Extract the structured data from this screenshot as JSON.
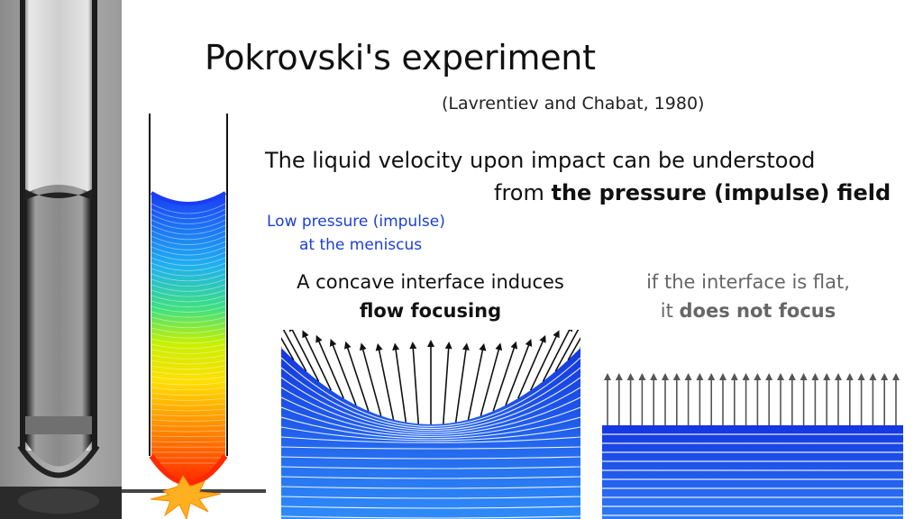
{
  "title": "Pokrovski's experiment",
  "citation": "(Lavrentiev and Chabat, 1980)",
  "lead": {
    "line1": "The liquid velocity upon impact can be understood",
    "line2_prefix": "from ",
    "line2_bold": "the pressure (impulse) field"
  },
  "meniscus_note": {
    "line1": "Low pressure (impulse)",
    "line2": "at the meniscus"
  },
  "concave_caption": {
    "line1": "A concave interface induces",
    "line2_bold": "flow focusing"
  },
  "flat_caption": {
    "line1": "if the interface is flat,",
    "line2_prefix": "it ",
    "line2_bold": "does not focus"
  },
  "colors": {
    "pressure_low": "#1a3cf5",
    "pressure_high": "#ff2a00",
    "text_blue": "#1a3fd6",
    "impact_flash": "#ffb020",
    "arrows": "#111111",
    "flat_arrows": "#555555"
  }
}
